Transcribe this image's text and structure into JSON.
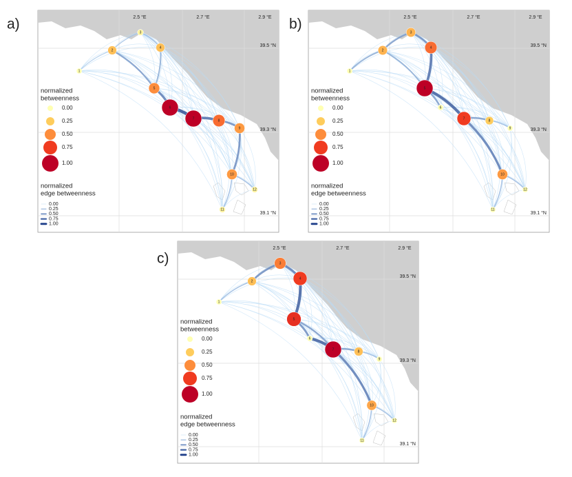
{
  "lon_labels": [
    "2.5 °E",
    "2.7 °E",
    "2.9 °E"
  ],
  "lat_labels": [
    "39.5 °N",
    "39.3 °N",
    "39.1 °N"
  ],
  "node_legend": {
    "title": [
      "normalized",
      "betweenness"
    ],
    "levels": [
      {
        "value": 0,
        "label": "0.00"
      },
      {
        "value": 0.25,
        "label": "0.25"
      },
      {
        "value": 0.5,
        "label": "0.50"
      },
      {
        "value": 0.75,
        "label": "0.75"
      },
      {
        "value": 1,
        "label": "1.00"
      }
    ]
  },
  "edge_legend": {
    "title": [
      "normalized",
      "edge betweenness"
    ],
    "levels": [
      {
        "value": 0,
        "label": "0.00"
      },
      {
        "value": 0.25,
        "label": "0.25"
      },
      {
        "value": 0.5,
        "label": "0.50"
      },
      {
        "value": 0.75,
        "label": "0.75"
      },
      {
        "value": 1,
        "label": "1.00"
      }
    ]
  },
  "panels": [
    {
      "label": "a)",
      "nodes": [
        {
          "label": "1",
          "betweenness": 0
        },
        {
          "label": "2",
          "betweenness": 0.3
        },
        {
          "label": "3",
          "betweenness": 0.05
        },
        {
          "label": "4",
          "betweenness": 0.3
        },
        {
          "label": "5",
          "betweenness": 0.5
        },
        {
          "label": "6",
          "betweenness": 1
        },
        {
          "label": "7",
          "betweenness": 1
        },
        {
          "label": "8",
          "betweenness": 0.6
        },
        {
          "label": "9",
          "betweenness": 0.45
        },
        {
          "label": "10",
          "betweenness": 0.45
        },
        {
          "label": "11",
          "betweenness": 0.05
        },
        {
          "label": "12",
          "betweenness": 0.05
        }
      ],
      "edges": [
        {
          "from": "2",
          "to": "5",
          "betweenness": 0.4
        },
        {
          "from": "4",
          "to": "5",
          "betweenness": 0.3
        },
        {
          "from": "5",
          "to": "6",
          "betweenness": 0.6
        },
        {
          "from": "6",
          "to": "7",
          "betweenness": 0.9
        },
        {
          "from": "7",
          "to": "8",
          "betweenness": 0.7
        },
        {
          "from": "8",
          "to": "9",
          "betweenness": 0.5
        },
        {
          "from": "9",
          "to": "10",
          "betweenness": 0.5
        },
        {
          "from": "3",
          "to": "4",
          "betweenness": 0.2
        },
        {
          "from": "10",
          "to": "11",
          "betweenness": 0.2
        },
        {
          "from": "10",
          "to": "12",
          "betweenness": 0.2
        },
        {
          "from": "1",
          "to": "2",
          "betweenness": 0.1
        },
        {
          "from": "2",
          "to": "3",
          "betweenness": 0.15
        }
      ]
    },
    {
      "label": "b)",
      "nodes": [
        {
          "label": "1",
          "betweenness": 0
        },
        {
          "label": "2",
          "betweenness": 0.35
        },
        {
          "label": "3",
          "betweenness": 0.35
        },
        {
          "label": "4",
          "betweenness": 0.6
        },
        {
          "label": "5",
          "betweenness": 1
        },
        {
          "label": "6",
          "betweenness": 0
        },
        {
          "label": "7",
          "betweenness": 0.75
        },
        {
          "label": "8",
          "betweenness": 0.25
        },
        {
          "label": "9",
          "betweenness": 0
        },
        {
          "label": "10",
          "betweenness": 0.45
        },
        {
          "label": "11",
          "betweenness": 0
        },
        {
          "label": "12",
          "betweenness": 0
        }
      ],
      "edges": [
        {
          "from": "1",
          "to": "2",
          "betweenness": 0.3
        },
        {
          "from": "2",
          "to": "3",
          "betweenness": 0.4
        },
        {
          "from": "3",
          "to": "4",
          "betweenness": 0.5
        },
        {
          "from": "4",
          "to": "5",
          "betweenness": 0.7
        },
        {
          "from": "5",
          "to": "7",
          "betweenness": 0.8
        },
        {
          "from": "5",
          "to": "6",
          "betweenness": 0.4
        },
        {
          "from": "7",
          "to": "8",
          "betweenness": 0.4
        },
        {
          "from": "7",
          "to": "10",
          "betweenness": 0.6
        },
        {
          "from": "8",
          "to": "9",
          "betweenness": 0.2
        },
        {
          "from": "10",
          "to": "11",
          "betweenness": 0.2
        },
        {
          "from": "10",
          "to": "12",
          "betweenness": 0.2
        },
        {
          "from": "2",
          "to": "5",
          "betweenness": 0.3
        }
      ]
    },
    {
      "label": "c)",
      "nodes": [
        {
          "label": "1",
          "betweenness": 0
        },
        {
          "label": "2",
          "betweenness": 0.3
        },
        {
          "label": "3",
          "betweenness": 0.55
        },
        {
          "label": "4",
          "betweenness": 0.75
        },
        {
          "label": "5",
          "betweenness": 0.8
        },
        {
          "label": "6",
          "betweenness": 0
        },
        {
          "label": "7",
          "betweenness": 1
        },
        {
          "label": "8",
          "betweenness": 0.3
        },
        {
          "label": "9",
          "betweenness": 0
        },
        {
          "label": "10",
          "betweenness": 0.4
        },
        {
          "label": "11",
          "betweenness": 0
        },
        {
          "label": "12",
          "betweenness": 0
        }
      ],
      "edges": [
        {
          "from": "1",
          "to": "2",
          "betweenness": 0.2
        },
        {
          "from": "2",
          "to": "3",
          "betweenness": 0.5
        },
        {
          "from": "3",
          "to": "4",
          "betweenness": 0.6
        },
        {
          "from": "4",
          "to": "5",
          "betweenness": 0.8
        },
        {
          "from": "5",
          "to": "6",
          "betweenness": 0.5
        },
        {
          "from": "6",
          "to": "7",
          "betweenness": 0.8
        },
        {
          "from": "5",
          "to": "7",
          "betweenness": 0.4
        },
        {
          "from": "7",
          "to": "8",
          "betweenness": 0.4
        },
        {
          "from": "7",
          "to": "10",
          "betweenness": 0.6
        },
        {
          "from": "8",
          "to": "9",
          "betweenness": 0.2
        },
        {
          "from": "10",
          "to": "11",
          "betweenness": 0.2
        },
        {
          "from": "10",
          "to": "12",
          "betweenness": 0.2
        }
      ]
    }
  ]
}
